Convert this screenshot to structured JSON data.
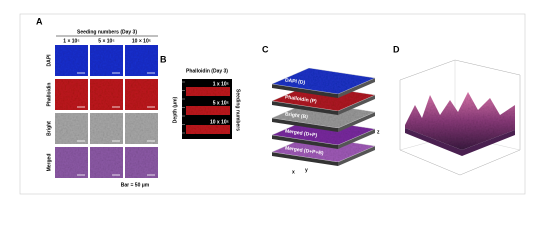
{
  "panel_a": {
    "label": "A",
    "header": "Seeding numbers (Day 3)",
    "columns": [
      "1 × 10⁵",
      "5 × 10⁵",
      "10 × 10⁵"
    ],
    "rows": [
      "DAPI",
      "Phalloidin",
      "Bright",
      "Merged"
    ],
    "scale_note": "Bar = 50 μm"
  },
  "panel_b": {
    "label": "B",
    "title": "Phalloidin (Day 3)",
    "y_axis_label": "Depth (μm)",
    "side_label": "Seeding numbers",
    "strips": [
      "1 x 10⁵",
      "5 x 10⁵",
      "10 x 10⁵"
    ]
  },
  "panel_c": {
    "label": "C",
    "layers": [
      "DAPI (D)",
      "Phalloidin (P)",
      "Bright (B)",
      "Merged (D+P)",
      "Merged (D+P+B)"
    ]
  },
  "panel_d": {
    "label": "D"
  }
}
